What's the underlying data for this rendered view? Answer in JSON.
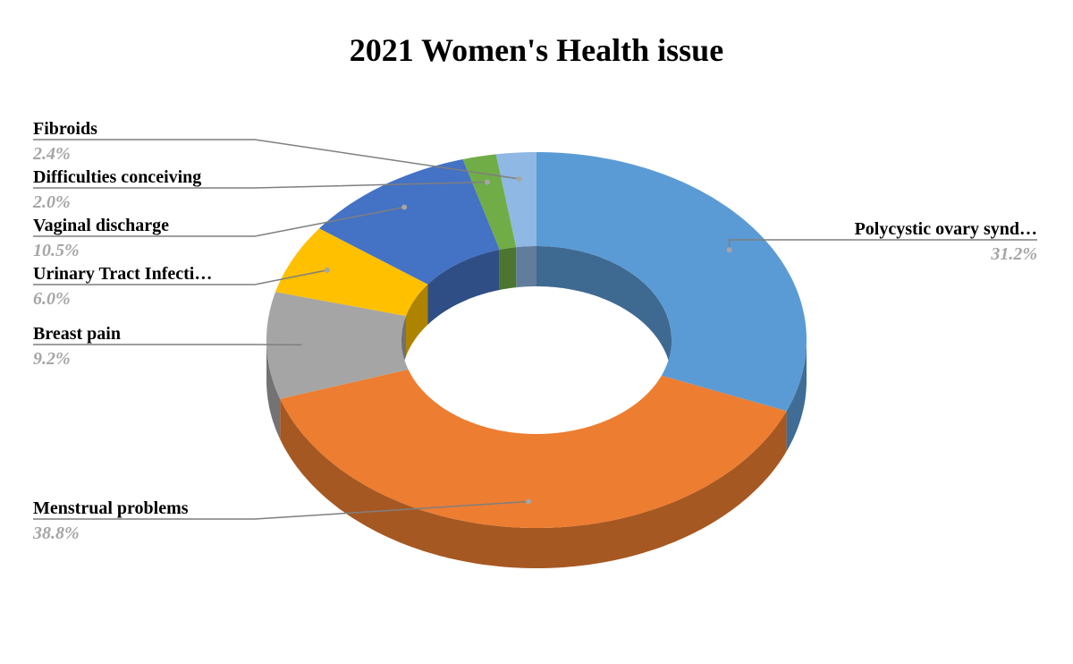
{
  "chart_data": {
    "type": "donut3d",
    "title": "2021 Women's Health issue",
    "categories": [
      "Polycystic ovary synd…",
      "Menstrual problems",
      "Breast pain",
      "Urinary Tract Infecti…",
      "Vaginal discharge",
      "Difficulties conceiving",
      "Fibroids"
    ],
    "values": [
      31.2,
      38.8,
      9.2,
      6.0,
      10.5,
      2.0,
      2.4
    ],
    "value_labels": [
      "31.2%",
      "38.8%",
      "9.2%",
      "6.0%",
      "10.5%",
      "2.0%",
      "2.4%"
    ],
    "colors": [
      "#5b9bd5",
      "#ed7d31",
      "#a5a5a5",
      "#ffc000",
      "#4472c4",
      "#70ad47",
      "#8fb8e4"
    ]
  }
}
